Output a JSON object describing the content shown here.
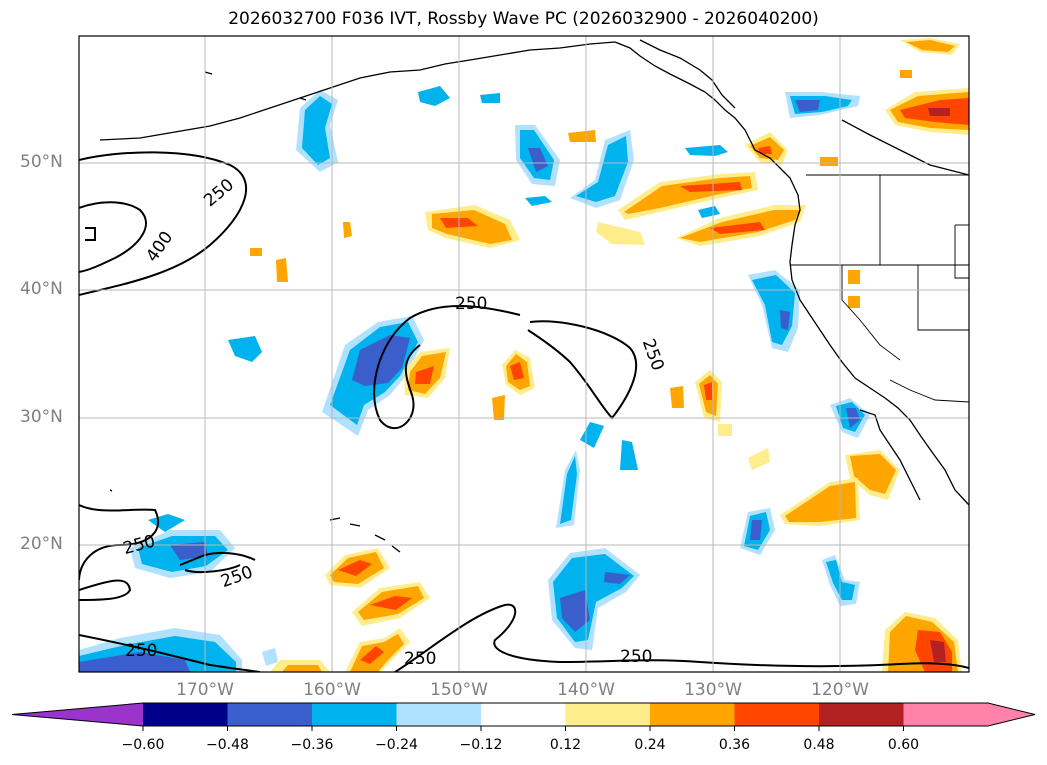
{
  "title": "2026032700 F036 IVT, Rossby Wave PC (2026032900 - 2026040200)",
  "map": {
    "lat_labels": [
      "50°N",
      "40°N",
      "30°N",
      "20°N"
    ],
    "lon_labels": [
      "170°W",
      "160°W",
      "150°W",
      "140°W",
      "130°W",
      "120°W"
    ],
    "contour_labels": [
      "250",
      "400",
      "250",
      "250",
      "250",
      "250",
      "250",
      "250",
      "250"
    ]
  },
  "colorbar": {
    "ticks": [
      "−0.60",
      "−0.48",
      "−0.36",
      "−0.24",
      "−0.12",
      "0.12",
      "0.24",
      "0.36",
      "0.48",
      "0.60"
    ],
    "colors": [
      "#9a34cc",
      "#00008b",
      "#3a5fcd",
      "#00b2ee",
      "#b0e2ff",
      "#ffffff",
      "#ffec8b",
      "#ffa500",
      "#ff4500",
      "#b22222",
      "#ff82ab",
      "#ff82ab"
    ]
  }
}
